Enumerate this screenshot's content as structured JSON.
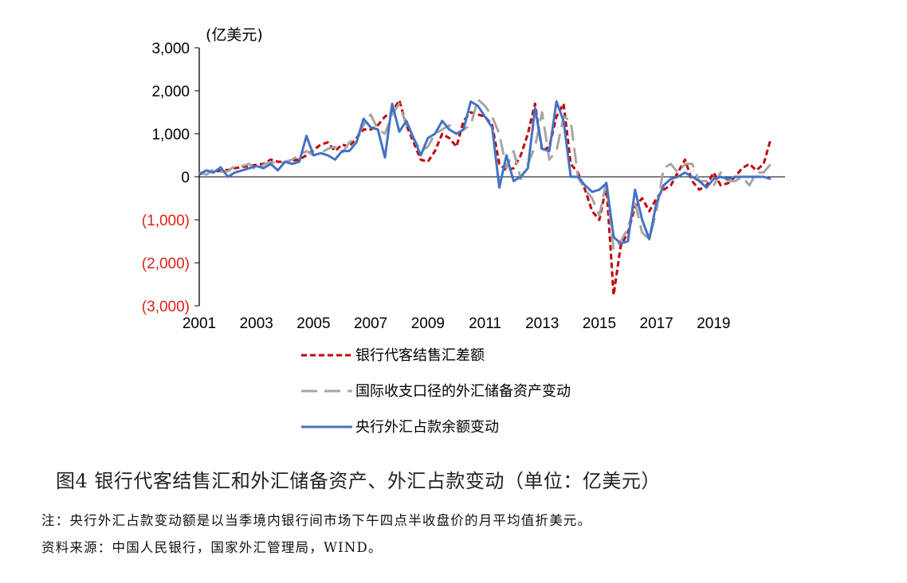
{
  "chart_data": {
    "type": "line",
    "unit_label": "(亿美元)",
    "ylim": [
      -3000,
      3000
    ],
    "xlim": [
      2001,
      2021.5
    ],
    "y_ticks": [
      3000,
      2000,
      1000,
      0,
      -1000,
      -2000,
      -3000
    ],
    "y_tick_labels": [
      "3,000",
      "2,000",
      "1,000",
      "0",
      "(1,000)",
      "(2,000)",
      "(3,000)"
    ],
    "negative_label_color": "#e0201b",
    "x_ticks": [
      2001,
      2003,
      2005,
      2007,
      2009,
      2011,
      2013,
      2015,
      2017,
      2019
    ],
    "x_tick_labels": [
      "2001",
      "2003",
      "2005",
      "2007",
      "2009",
      "2011",
      "2013",
      "2015",
      "2017",
      "2019"
    ],
    "grid": false,
    "legend_position": "bottom",
    "series": [
      {
        "name": "银行代客结售汇差额",
        "color": "#c00000",
        "style": "dashed",
        "x": [
          2001.0,
          2001.25,
          2001.5,
          2001.75,
          2002.0,
          2002.25,
          2002.5,
          2002.75,
          2003.0,
          2003.25,
          2003.5,
          2003.75,
          2004.0,
          2004.25,
          2004.5,
          2004.75,
          2005.0,
          2005.25,
          2005.5,
          2005.75,
          2006.0,
          2006.25,
          2006.5,
          2006.75,
          2007.0,
          2007.25,
          2007.5,
          2007.75,
          2008.0,
          2008.25,
          2008.5,
          2008.75,
          2009.0,
          2009.25,
          2009.5,
          2009.75,
          2010.0,
          2010.25,
          2010.5,
          2010.75,
          2011.0,
          2011.25,
          2011.5,
          2011.75,
          2012.0,
          2012.25,
          2012.5,
          2012.75,
          2013.0,
          2013.25,
          2013.5,
          2013.75,
          2014.0,
          2014.25,
          2014.5,
          2014.75,
          2015.0,
          2015.25,
          2015.5,
          2015.75,
          2016.0,
          2016.25,
          2016.5,
          2016.75,
          2017.0,
          2017.25,
          2017.5,
          2017.75,
          2018.0,
          2018.25,
          2018.5,
          2018.75,
          2019.0,
          2019.25,
          2019.5,
          2019.75,
          2020.0,
          2020.25,
          2020.5,
          2020.75,
          2021.0
        ],
        "values": [
          60,
          100,
          120,
          140,
          160,
          200,
          230,
          250,
          280,
          300,
          400,
          350,
          350,
          380,
          400,
          500,
          620,
          750,
          800,
          600,
          750,
          700,
          900,
          1100,
          1100,
          1200,
          1400,
          1500,
          1780,
          1200,
          800,
          400,
          350,
          600,
          1000,
          900,
          700,
          1300,
          1500,
          1450,
          1400,
          1200,
          300,
          150,
          200,
          500,
          1000,
          1700,
          600,
          700,
          1400,
          1700,
          300,
          100,
          -300,
          -800,
          -1000,
          -200,
          -2750,
          -1600,
          -1300,
          -700,
          -500,
          -800,
          -500,
          -300,
          -200,
          100,
          400,
          -100,
          -300,
          -200,
          100,
          -200,
          -150,
          0,
          200,
          300,
          150,
          300,
          880
        ]
      },
      {
        "name": "国际收支口径的外汇储备资产变动",
        "color": "#a6a6a6",
        "style": "longdash",
        "x": [
          2001.0,
          2001.25,
          2001.5,
          2001.75,
          2002.0,
          2002.25,
          2002.5,
          2002.75,
          2003.0,
          2003.25,
          2003.5,
          2003.75,
          2004.0,
          2004.25,
          2004.5,
          2004.75,
          2005.0,
          2005.25,
          2005.5,
          2005.75,
          2006.0,
          2006.25,
          2006.5,
          2006.75,
          2007.0,
          2007.25,
          2007.5,
          2007.75,
          2008.0,
          2008.25,
          2008.5,
          2008.75,
          2009.0,
          2009.25,
          2009.5,
          2009.75,
          2010.0,
          2010.25,
          2010.5,
          2010.75,
          2011.0,
          2011.25,
          2011.5,
          2011.75,
          2012.0,
          2012.25,
          2012.5,
          2012.75,
          2013.0,
          2013.25,
          2013.5,
          2013.75,
          2014.0,
          2014.25,
          2014.5,
          2014.75,
          2015.0,
          2015.25,
          2015.5,
          2015.75,
          2016.0,
          2016.25,
          2016.5,
          2016.75,
          2017.0,
          2017.25,
          2017.5,
          2017.75,
          2018.0,
          2018.25,
          2018.5,
          2018.75,
          2019.0,
          2019.25,
          2019.5,
          2019.75,
          2020.0,
          2020.25,
          2020.5,
          2020.75,
          2021.0
        ],
        "values": [
          100,
          50,
          180,
          120,
          130,
          250,
          250,
          300,
          150,
          280,
          350,
          300,
          350,
          400,
          500,
          600,
          500,
          550,
          650,
          700,
          550,
          800,
          900,
          1200,
          1450,
          1100,
          1000,
          1450,
          1700,
          1200,
          900,
          600,
          700,
          1000,
          1100,
          1200,
          1000,
          1100,
          1200,
          1800,
          1650,
          1400,
          1000,
          200,
          600,
          -50,
          300,
          700,
          1500,
          400,
          600,
          1400,
          1300,
          0,
          -300,
          -500,
          -900,
          -100,
          -1700,
          -1500,
          -1200,
          -600,
          -1300,
          -1450,
          -800,
          200,
          300,
          100,
          300,
          300,
          -100,
          -100,
          -200,
          100,
          -100,
          -100,
          0,
          -200,
          100,
          100,
          300
        ]
      },
      {
        "name": "央行外汇占款余额变动",
        "color": "#4472c4",
        "style": "solid",
        "x": [
          2001.0,
          2001.25,
          2001.5,
          2001.75,
          2002.0,
          2002.25,
          2002.5,
          2002.75,
          2003.0,
          2003.25,
          2003.5,
          2003.75,
          2004.0,
          2004.25,
          2004.5,
          2004.75,
          2005.0,
          2005.25,
          2005.5,
          2005.75,
          2006.0,
          2006.25,
          2006.5,
          2006.75,
          2007.0,
          2007.25,
          2007.5,
          2007.75,
          2008.0,
          2008.25,
          2008.5,
          2008.75,
          2009.0,
          2009.25,
          2009.5,
          2009.75,
          2010.0,
          2010.25,
          2010.5,
          2010.75,
          2011.0,
          2011.25,
          2011.5,
          2011.75,
          2012.0,
          2012.25,
          2012.5,
          2012.75,
          2013.0,
          2013.25,
          2013.5,
          2013.75,
          2014.0,
          2014.25,
          2014.5,
          2014.75,
          2015.0,
          2015.25,
          2015.5,
          2015.75,
          2016.0,
          2016.25,
          2016.5,
          2016.75,
          2017.0,
          2017.25,
          2017.5,
          2017.75,
          2018.0,
          2018.25,
          2018.5,
          2018.75,
          2019.0,
          2019.25,
          2019.5,
          2019.75,
          2020.0,
          2020.25,
          2020.5,
          2020.75,
          2021.0
        ],
        "values": [
          60,
          150,
          100,
          220,
          0,
          100,
          150,
          200,
          250,
          200,
          300,
          150,
          350,
          300,
          350,
          950,
          500,
          550,
          500,
          400,
          600,
          600,
          800,
          1350,
          1150,
          1100,
          450,
          1700,
          1050,
          1300,
          900,
          500,
          900,
          1000,
          1300,
          1100,
          1000,
          1100,
          1750,
          1650,
          1400,
          1150,
          -250,
          500,
          -100,
          0,
          200,
          1600,
          650,
          600,
          1750,
          1300,
          0,
          0,
          -200,
          -350,
          -300,
          -150,
          -1400,
          -1550,
          -1500,
          -300,
          -1000,
          -1450,
          -600,
          -200,
          -50,
          0,
          100,
          0,
          -100,
          -250,
          -50,
          0,
          -50,
          0,
          0,
          0,
          0,
          0,
          -50
        ]
      }
    ]
  },
  "caption": "图4 银行代客结售汇和外汇储备资产、外汇占款变动（单位：亿美元）",
  "notes": {
    "note": "注：央行外汇占款变动额是以当季境内银行间市场下午四点半收盘价的月平均值折美元。",
    "source": "资料来源：中国人民银行，国家外汇管理局，WIND。"
  }
}
